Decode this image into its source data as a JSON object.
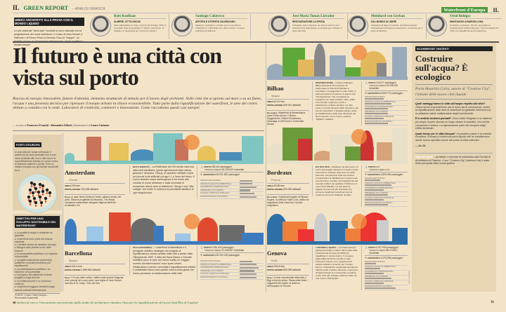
{
  "header": {
    "il": "IL",
    "section": "GREEN REPORT",
    "subsection": "– ANALISI GRAFICA",
    "badge": "Waterfront d'Europa",
    "il_right": "IL"
  },
  "intro_box": {
    "tag": "UNDICI ARCHITETTI ALLA PROVA CON IL MONDO LIQUIDO",
    "text": "Le più celebrate \"archi-star\" mondiali si sono misurate con la progettazione dei nuovi waterfront: è il caso di Jean Nouvel a Valencia o di Renzo Piano a Genova. Ecco le \"mappe\": un ristretto gruppo di urbanisti sta ridisegnando i fronti marittimi e fluviali europei"
  },
  "architects": [
    {
      "name": "Rem Koolhaas",
      "role": "ALMERE, CITTÀ NUOVA",
      "bio": "Nato a Rotterdam nel 1944, vincitore del Pritzker 2000, il suo studio Oma ha progettato il \"Almere waterfront\", in Olanda, e il masterplan per il porto di Cagliari."
    },
    {
      "name": "Santiago Calatrava",
      "role": "ARTISTA E UTOPISTA VALENCIANO",
      "bio": "Ingegnere, architetto e scultore, per la sua città ha progettato la \"Città delle arti e delle scienze\", il nuovo waterfront di Valencia."
    },
    {
      "name": "José María Tomás Llavador",
      "role": "RESTAURAZIONE LA SPEZIA",
      "bio": "Urbanista, nato a Valencia, ha vinto il concorso per i moli del porto della Spezia, un progetto per restituire il mare alla città."
    },
    {
      "name": "Meinhard von Gerkan",
      "role": "DAL MONDO AL MARE",
      "bio": "Originario di Riga, in Lettonia, ha firmato progetti internazionali nell'area del waterfront e il concorso per il porto di Valencia."
    },
    {
      "name": "Oriol Bohigas",
      "role": "MONTAGGIO A BARCELLONA",
      "bio": "Architetto e urbanista, 78 anni, ha guidato la trasformazione di Barcellona per i Giochi olimpici del 1992 e la riqualificazione del waterfront."
    }
  ],
  "title": "Il futuro è una città con vista sul porto",
  "lead": "Risorsa di energia rinnovabile, fattore d'identità, elemento strutturale di stimolo per il lavoro degli architetti. Nelle città che si aprono sul mare o su un fiume, l'acqua è una presenza decisiva per ripensare il tessuto urbano in chiave ecosostenibile. Tutto parte dalla riqualificazione dei waterfront, le aree del centro abitato a contatto con le onde. Laboratori di creatività, commerci e innovazione. Come raccontano questi casi europei",
  "credits": {
    "prefix": "— a cura di",
    "authors": "Francesco Franchi · Alessandro Giberti",
    "illus_prefix": "| illustrazioni di",
    "illustrator": "Laura Cattaneo"
  },
  "left_sidebar": {
    "map_tag": "PORTI D'EUROPA",
    "map_text": "In una città che sorge sull'acqua, il waterfront (la zona portuale) non è solo l'area dedicata alle navi e alle merci: la sua ridefinizione diventa un nuovo centro di relazioni culturali e sociali. Ecco la cartina europea con gli esempi raccontati da IL",
    "goals_tag": "OBIETTIVI PER UNO SVILUPPO SOSTENIBILE DEL WATERFRONT",
    "goals": [
      "La qualità di acqua e ambiente va garantita",
      "I waterfront sono parte del tessuto esistente",
      "L'identità storica dà carattere al luogo",
      "Bisogna dare priorità al mix delle funzioni",
      "La accessibilità pubblica è un requisito irrinunciabile",
      "I progetti sostenuti da partnership pubbliche e private procedono più rapidamente",
      "La partecipazione pubblica è un elemento di sostenibilità",
      "Il recupero dei waterfront richiede progetti a lungo termine",
      "La rivitalizzazione è un processo continuo",
      "I waterfront traggono beneficio dagli scambi culturali internazionali"
    ],
    "source": "FONTE: Centro Città d'Acqua – Rinnovabili Sostenibili"
  },
  "stat_labels": [
    "GRUPPI INDUSTRIALI",
    "INDICE DI QUALITÀ AMBIENTALE",
    "CONGRESSI INTERNAZIONALI",
    "PRESENZA DI STUDENTI",
    "FLUSSO TURISTICO ANNUALE",
    "MANIFESTAZIONI CULTURALI"
  ],
  "labels": {
    "area": "AREA:",
    "pop": "POPOLAZIONE:",
    "port": "PORTO:",
    "freight": "TRAFFICO MERCI:",
    "airport": "AEROPORTO:"
  },
  "cities": [
    {
      "id": "amsterdam",
      "name": "Amsterdam",
      "country": "Olanda",
      "area": "219 km²",
      "pop": "720.295 abitanti",
      "kicker": "MULTI-IDENTITÀ",
      "body": "– La Rotterdam del XXI secolo sarà una città multi-identitaria, aperta agli elementi della natura, giocosa e dinamica. IJburg, un quartiere edificato sopra sei piccole isole artificiali sul lago IJ, è l'area del futuro. Il nuovo distretto nasce dall'esigenza di far fronte alla crescita di nuove abitazioni e dalla necessità di recuperare alcune aree di waterfront. IJburg è una \"città cottage\" che mette in evidenza le peculiarità attrattive di ogni singola isola.",
      "places_label": "Dopo, in città:",
      "places": "Nemo Science Center, palazzo storico del porto, Stazioni progettate da Mecanoo, The Whale, complesso residenziale disegnato dagli architetti de Architekten Cie",
      "port": "306.000 passeggeri",
      "freight": "53.000.000 tonnellate",
      "airport": "39.631.489 passeggeri",
      "stats": [
        0.6,
        0.6,
        0.8,
        0.5,
        0.7,
        0.8
      ]
    },
    {
      "id": "bilbao",
      "name": "Bilbao",
      "country": "Spagna",
      "area": "41,31 km²",
      "pop": "349.912 abitanti",
      "kicker": "RIGENERAZIONE",
      "body": "– Il piano strategico Bilbao Metropoli-30 si propone di trasformare la città da industriale a innovativa. Il Guggenheim è solo l'inizio: il piano prevede la creazione di spazi a uso \"di integrazione\" che connettano la residenza con spazi pubblici, uffici, edifici commerciali, luoghi per eventi e infrastrutture turistico-ricettive. Un altro punto è il potenziamento delle strutture e dei servizi universitari. Il progetto pilota è stato la riqualificazione delle aree dismesse del fiume Nervión come nuovo e potente \"biglietto\" cittadino.",
      "places_label": "Da vedere:",
      "places": "Waterfront di Abandoibarra, ponte Pedro Arrupe, il Museo Guggenheim, Palacio Euskalduna, Alhondiga di Jeff Koons e l'università Deusto",
      "port": "144.877 passeggeri",
      "freight": "33.336.332 tonnellate",
      "airport": "3.506.770 passeggeri",
      "stats": [
        0.5,
        0.7,
        0.6,
        0.6,
        0.5,
        0.6
      ]
    },
    {
      "id": "bordeaux",
      "name": "Bordeaux",
      "country": "Francia",
      "area": "49,36 km²",
      "pop": "229.900 abitanti",
      "kicker": "DAI DUE RIVE",
      "body": "– Bordeaux ha dieci anni: è il nome del progetto attraverso il quale è stato promosso lo sviluppo delle due rive della Garonna. Gli interventi sulla riva sinistra comprendono la riabilitazione di spazi a uso commerciale e sociale, il prolungamento del mercato Colbert nel quartiere Chartrons e il nuovo Parc Bastide. La riva destra è oggetto di interventi più strutturali: qui verranno localizzati investimenti per la creazione di nuove cittadelle terziarie.",
      "places_label": "Da vedere:",
      "places": "Il placement gastro di Richard Rogers, la chiesa di Saint Croix, edifici sul lungofiume della Garonna e il ponte d'Aquitaine",
      "port": "n.d.",
      "freight": "n.d.",
      "airport": "3.509.006 passeggeri",
      "stats": [
        0.4,
        0.7,
        0.5,
        0.6,
        0.5,
        0.6
      ]
    },
    {
      "id": "barcellona",
      "name": "Barcellona",
      "country": "Spagna",
      "area": "100,4 km²",
      "pop": "1.598.946 abitanti",
      "kicker": "ECO-SOSTENIBILE",
      "body": "– I waterfront di Barcellona e il principale obiettivo strategico del progetto di riqualificazione urbana avviato dalla città a partire dalle Olimpiadi del 1992. Il delta del fiume Besòs e il litorale marittimo sono le aree che hanno subito un maggior numero di trasformazioni: nuovi spazi urbani, infrastrutture e servizi, università e riqualificazione edilizia e ambientale hanno reso queste zone la linea guida che hanno permesso la trasformazione della città.",
      "places_label": "Dopo:",
      "places": "Il Forum delle culture, edificio sulla sponda Diagonal, zone portuali del nuovo porto, torre Agbar di Jean Nouvel, mercato di St. Josep, Torre del Gas",
      "port": "3.260.000 passeggeri",
      "freight": "47.636.947 tonnellate",
      "airport": "30.200.128 passeggeri",
      "stats": [
        0.6,
        0.8,
        0.9,
        0.7,
        0.8,
        0.8
      ]
    },
    {
      "id": "genova",
      "name": "Genova",
      "country": "Italia",
      "area": "243,6 km²",
      "pop": "609.399 abitanti",
      "kicker": "LANTERNA LIQUIDA",
      "body": "– La trasformazione dell'area portuale è stata il fulcro della sfida intrapresa da Genova nel 2000 per riqualificare il centro storico. Il recupero degli edifici del Porto vecchio è stato promosso insieme a un programma di attività culturali e di servizi per il tempo libero e l'educazione ambientale pensati per attirare turisti. A partire dal porto, il processo di rigenerazione si è riverberato su tutta la costa. Fino allo sviluppo di Renzo Piano di una nuova \"città liquida\".",
      "places_label": "Dopo:",
      "places": "Il porto commerciale della città, il Bigo nel porto antico, Piazza delle feste, i magazzini del cotone, la lanterna dell'acquario di Genova",
      "port": "3.027.909 passeggeri",
      "freight": "56.470.527 tonnellate",
      "airport": "1.078.396 passeggeri",
      "stats": [
        0.3,
        0.4,
        0.5,
        0.7,
        0.5,
        0.8
      ]
    }
  ],
  "right_sidebar": {
    "tag": "SCOMMESSE VINCENTI",
    "title": "Costruire sull'acqua? È ecologico",
    "intro": "Parla Maurizio Carta, autore di \"Creative City\", l'atlante delle nuove città liquide",
    "qa": [
      {
        "q": "Quali vantaggi hanno le città sull'acqua rispetto alle altre?",
        "a": "«Sono secoli di grandi flussi, sia di merci sia di conoscenze. Inoltre, la riqualificazione delle aree di waterfront ha garantito interventi con un altissimo valore moltiplicatore degli investimenti»."
      },
      {
        "q": "E le antiche funzioni portuali?",
        "a": "«Sono state integrate in un sistema più ampio: il porto diventa un luogo urbano di scambio, con servizi, commercio e cultura. La rigenerazione parte dal recupero degli edifici dismessi»."
      },
      {
        "q": "Quale futuro per le città d'acqua?",
        "a": "«Il prossimo passo è la crescita condivisa: l'Europa si troverà sul porto liquido che ne cambieranno anche il peso specifico anche dal punto di vista culturale»."
      }
    ],
    "signature": "— AL.GI.",
    "bio_name": "Maurizio Carta",
    "bio": "– architetto, è docente di urbanistica alla Facoltà di Architettura di Palermo. Il suo \"Creative City\" (edizioni List) è stato fonte principale della nostra grafica",
    "photo_credit": "Laura Cattaneo"
  },
  "footer": {
    "number": "30",
    "text": "milioni di euro è l'investimento preventivato dallo studio di architettura olandese Oma per la riqualificazione del porto Sant'Elia di Cagliari",
    "page": "31"
  },
  "colors": {
    "background": "#f4e4c7",
    "accent_green": "#1d7a3c",
    "badge_green": "#4e9a3a",
    "sidebar": "#e7d5b4"
  }
}
